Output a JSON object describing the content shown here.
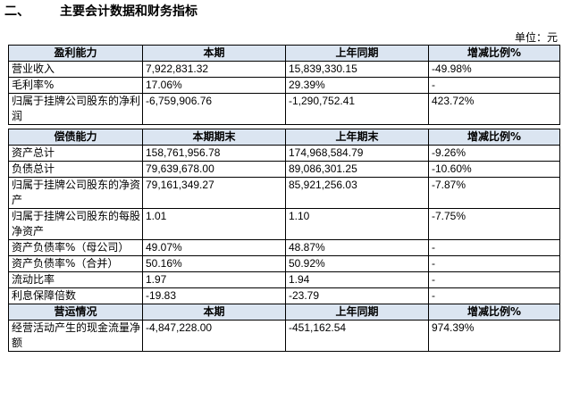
{
  "section": {
    "number": "二、",
    "title": "主要会计数据和财务指标"
  },
  "unit_label": "单位：元",
  "profit": {
    "headers": [
      "盈利能力",
      "本期",
      "上年同期",
      "增减比例%"
    ],
    "rows": [
      [
        "营业收入",
        "7,922,831.32",
        "15,839,330.15",
        "-49.98%"
      ],
      [
        "毛利率%",
        "17.06%",
        "29.39%",
        "-"
      ],
      [
        "归属于挂牌公司股东的净利润",
        "-6,759,906.76",
        "-1,290,752.41",
        "423.72%"
      ]
    ]
  },
  "solvency": {
    "headers": [
      "偿债能力",
      "本期期末",
      "上年期末",
      "增减比例%"
    ],
    "rows": [
      [
        "资产总计",
        "158,761,956.78",
        "174,968,584.79",
        "-9.26%"
      ],
      [
        "负债总计",
        "79,639,678.00",
        "89,086,301.25",
        "-10.60%"
      ],
      [
        "归属于挂牌公司股东的净资产",
        "79,161,349.27",
        "85,921,256.03",
        "-7.87%"
      ],
      [
        "归属于挂牌公司股东的每股净资产",
        "1.01",
        "1.10",
        "-7.75%"
      ],
      [
        "资产负债率%（母公司）",
        "49.07%",
        "48.87%",
        "-"
      ],
      [
        "资产负债率%（合并）",
        "50.16%",
        "50.92%",
        "-"
      ],
      [
        "流动比率",
        "1.97",
        "1.94",
        "-"
      ],
      [
        "利息保障倍数",
        "-19.83",
        "-23.79",
        "-"
      ]
    ]
  },
  "operations": {
    "headers": [
      "营运情况",
      "本期",
      "上年同期",
      "增减比例%"
    ],
    "rows": [
      [
        "经营活动产生的现金流量净额",
        "-4,847,228.00",
        "-451,162.54",
        "974.39%"
      ]
    ]
  }
}
